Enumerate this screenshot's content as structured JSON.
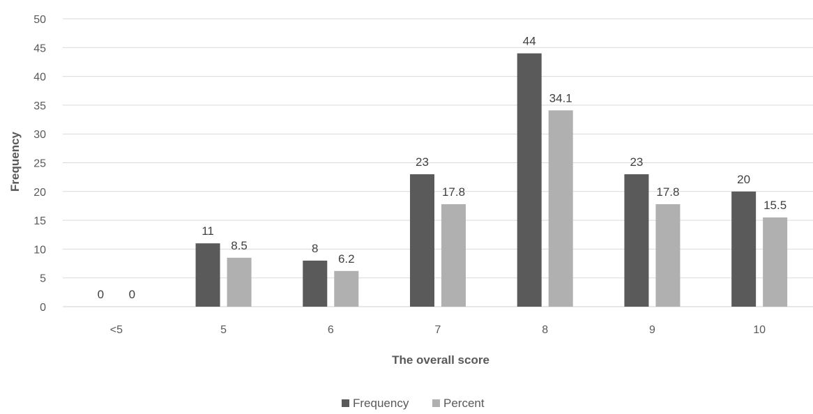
{
  "chart_data": {
    "type": "bar",
    "categories": [
      "<5",
      "5",
      "6",
      "7",
      "8",
      "9",
      "10"
    ],
    "series": [
      {
        "name": "Frequency",
        "values": [
          0,
          11,
          8,
          23,
          44,
          23,
          20
        ],
        "labels": [
          "0",
          "11",
          "8",
          "23",
          "44",
          "23",
          "20"
        ],
        "color": "#5a5a5a"
      },
      {
        "name": "Percent",
        "values": [
          0,
          8.5,
          6.2,
          17.8,
          34.1,
          17.8,
          15.5
        ],
        "labels": [
          "0",
          "8.5",
          "6.2",
          "17.8",
          "34.1",
          "17.8",
          "15.5"
        ],
        "color": "#b0b0b0"
      }
    ],
    "title": "",
    "xlabel": "The overall score",
    "ylabel": "Frequency",
    "ylim": [
      0,
      50
    ],
    "yticks": [
      0,
      5,
      10,
      15,
      20,
      25,
      30,
      35,
      40,
      45,
      50
    ],
    "grid": true,
    "legend_position": "bottom"
  }
}
